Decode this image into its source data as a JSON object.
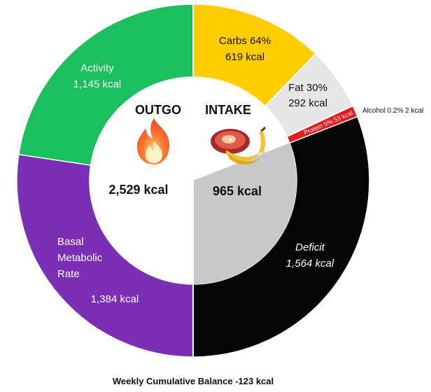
{
  "chart_data": {
    "type": "pie",
    "subtype": "donut",
    "outgo": {
      "heading": "OUTGO",
      "total_label": "2,529 kcal",
      "total": 2529,
      "icon": "fire-icon",
      "segments": [
        {
          "key": "activity",
          "name_lines": [
            "Activity"
          ],
          "value": 1145,
          "value_label": "1,145 kcal",
          "color": "#1cbf5e"
        },
        {
          "key": "bmr",
          "name_lines": [
            "Basal",
            "Metabolic",
            "Rate"
          ],
          "value": 1384,
          "value_label": "1,384 kcal",
          "color": "#7a2fb6"
        }
      ]
    },
    "intake": {
      "heading": "INTAKE",
      "total_label": "965 kcal",
      "total": 965,
      "icon": "food-icon",
      "segments": [
        {
          "key": "carbs",
          "label": "Carbs 64%",
          "value": 619,
          "value_label": "619 kcal",
          "color": "#ffcd00"
        },
        {
          "key": "fat",
          "label": "Fat 30%",
          "value": 292,
          "value_label": "292 kcal",
          "color": "#e6e6e6"
        },
        {
          "key": "alcohol",
          "label": "Alcohol 0.2% 2 kcal",
          "value": 2,
          "color": "#e8181c"
        },
        {
          "key": "protein",
          "label": "Protein 5% 53 kcal",
          "value": 53,
          "color": "#e8181c"
        },
        {
          "key": "deficit",
          "label": "Deficit",
          "value": 1564,
          "value_label": "1,564 kcal",
          "color": "#050505"
        }
      ]
    },
    "footer": "Weekly Cumulative Balance -123 kcal"
  }
}
